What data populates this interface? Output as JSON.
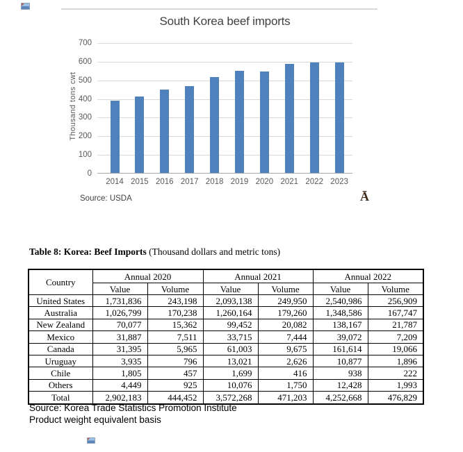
{
  "misc": {
    "stray_glyph": "Ā"
  },
  "icons": {
    "top_placeholder": "image-placeholder",
    "bottom_placeholder": "image-placeholder"
  },
  "chart_data": {
    "type": "bar",
    "title": "South Korea beef imports",
    "ylabel": "Thousand tons cwt",
    "categories": [
      "2014",
      "2015",
      "2016",
      "2017",
      "2018",
      "2019",
      "2020",
      "2021",
      "2022",
      "2023"
    ],
    "values": [
      392,
      414,
      452,
      469,
      516,
      550,
      549,
      589,
      596,
      595
    ],
    "ylim": [
      0,
      700
    ],
    "ytick_step": 100,
    "grid": true,
    "legend": "none",
    "bar_color": "#4f81bd",
    "source": "Source: USDA"
  },
  "table": {
    "title_bold": "Table 8: Korea: Beef Imports",
    "title_note": " (Thousand dollars and metric tons)",
    "corner_header": "Country",
    "group_headers": [
      "Annual 2020",
      "Annual 2021",
      "Annual 2022"
    ],
    "sub_headers": [
      "Value",
      "Volume"
    ],
    "rows": [
      [
        "United States",
        "1,731,836",
        "243,198",
        "2,093,138",
        "249,950",
        "2,540,986",
        "256,909"
      ],
      [
        "Australia",
        "1,026,799",
        "170,238",
        "1,260,164",
        "179,260",
        "1,348,586",
        "167,747"
      ],
      [
        "New Zealand",
        "70,077",
        "15,362",
        "99,452",
        "20,082",
        "138,167",
        "21,787"
      ],
      [
        "Mexico",
        "31,887",
        "7,511",
        "33,715",
        "7,444",
        "39,072",
        "7,209"
      ],
      [
        "Canada",
        "31,395",
        "5,965",
        "61,003",
        "9,675",
        "161,614",
        "19,066"
      ],
      [
        "Uruguay",
        "3,935",
        "796",
        "13,021",
        "2,626",
        "10,877",
        "1,896"
      ],
      [
        "Chile",
        "1,805",
        "457",
        "1,699",
        "416",
        "938",
        "222"
      ],
      [
        "Others",
        "4,449",
        "925",
        "10,076",
        "1,750",
        "12,428",
        "1,993"
      ],
      [
        "Total",
        "2,902,183",
        "444,452",
        "3,572,268",
        "471,203",
        "4,252,668",
        "476,829"
      ]
    ],
    "footnotes": [
      "Source: Korea Trade Statistics Promotion Institute",
      "Product weight equivalent basis"
    ]
  }
}
